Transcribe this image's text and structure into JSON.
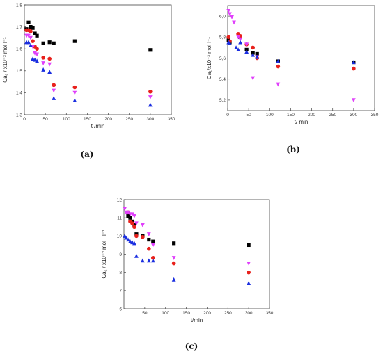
{
  "panel_labels": [
    "(a)",
    "(b)",
    "(c)"
  ],
  "chart_data": [
    {
      "type": "scatter",
      "panel": "(a)",
      "xlabel": "t /min",
      "ylabel": "Ca₁ / x10⁻³ mol l⁻¹",
      "xlim": [
        0,
        350
      ],
      "ylim": [
        1.3,
        1.8
      ],
      "xticks": [
        0,
        50,
        100,
        150,
        200,
        250,
        300,
        350
      ],
      "yticks": [
        1.3,
        1.4,
        1.5,
        1.6,
        1.7,
        1.8
      ],
      "ytick_labels": [
        "1.3",
        "1.4",
        "1.5",
        "1.6",
        "1.7",
        "1.8"
      ],
      "series": [
        {
          "color": "#000000",
          "marker": "square",
          "x": [
            5,
            10,
            15,
            20,
            25,
            30,
            45,
            60,
            70,
            120,
            300
          ],
          "y": [
            1.69,
            1.72,
            1.7,
            1.695,
            1.67,
            1.66,
            1.625,
            1.63,
            1.625,
            1.635,
            1.595
          ]
        },
        {
          "color": "#e8211c",
          "marker": "circle",
          "x": [
            5,
            10,
            15,
            20,
            25,
            30,
            45,
            60,
            70,
            120,
            300
          ],
          "y": [
            1.685,
            1.685,
            1.68,
            1.635,
            1.61,
            1.6,
            1.56,
            1.555,
            1.435,
            1.425,
            1.405
          ]
        },
        {
          "color": "#e040fb",
          "marker": "triangle-down",
          "x": [
            5,
            10,
            15,
            20,
            25,
            30,
            45,
            60,
            70,
            120,
            300
          ],
          "y": [
            1.66,
            1.66,
            1.65,
            1.61,
            1.58,
            1.575,
            1.535,
            1.53,
            1.41,
            1.4,
            1.38
          ]
        },
        {
          "color": "#1a2ee0",
          "marker": "triangle-up",
          "x": [
            5,
            10,
            15,
            20,
            25,
            30,
            45,
            60,
            70,
            120,
            300
          ],
          "y": [
            1.63,
            1.63,
            1.615,
            1.555,
            1.55,
            1.545,
            1.505,
            1.495,
            1.375,
            1.365,
            1.345
          ]
        }
      ]
    },
    {
      "type": "scatter",
      "panel": "(b)",
      "xlabel": "t/ min",
      "ylabel": "Ca₁/x10⁻³ mol l⁻¹",
      "xlim": [
        0,
        350
      ],
      "ylim": [
        5.1,
        6.1
      ],
      "xticks": [
        0,
        50,
        100,
        150,
        200,
        250,
        300,
        350
      ],
      "yticks": [
        5.2,
        5.4,
        5.6,
        5.8,
        6.0
      ],
      "ytick_labels": [
        "5,2",
        "5,4",
        "5,6",
        "5,8",
        "6,0"
      ],
      "series": [
        {
          "color": "#000000",
          "marker": "square",
          "x": [
            2,
            5,
            30,
            45,
            60,
            70,
            120,
            300
          ],
          "y": [
            5.77,
            5.75,
            5.8,
            5.68,
            5.65,
            5.64,
            5.57,
            5.56
          ]
        },
        {
          "color": "#e8211c",
          "marker": "circle",
          "x": [
            2,
            5,
            25,
            30,
            45,
            60,
            70,
            120,
            300
          ],
          "y": [
            5.8,
            5.76,
            5.83,
            5.81,
            5.73,
            5.7,
            5.6,
            5.52,
            5.5
          ]
        },
        {
          "color": "#e040fb",
          "marker": "triangle-down",
          "x": [
            2,
            5,
            10,
            15,
            25,
            30,
            45,
            60,
            70,
            120,
            300
          ],
          "y": [
            6.05,
            6.02,
            5.99,
            5.94,
            5.8,
            5.78,
            5.73,
            5.41,
            5.61,
            5.35,
            5.2
          ]
        },
        {
          "color": "#1a2ee0",
          "marker": "triangle-up",
          "x": [
            2,
            5,
            20,
            25,
            30,
            45,
            60,
            70,
            120,
            300
          ],
          "y": [
            5.75,
            5.74,
            5.7,
            5.68,
            5.75,
            5.66,
            5.63,
            5.61,
            5.57,
            5.56
          ]
        }
      ]
    },
    {
      "type": "scatter",
      "panel": "(c)",
      "xlabel": "t/min",
      "ylabel": "Ca₁ / x10⁻³ mol · l⁻¹",
      "xlim": [
        0,
        350
      ],
      "ylim": [
        6,
        12
      ],
      "xticks": [
        50,
        100,
        150,
        200,
        250,
        300,
        350
      ],
      "yticks": [
        6,
        7,
        8,
        9,
        10,
        11,
        12
      ],
      "ytick_labels": [
        "6",
        "7",
        "8",
        "9",
        "10",
        "11",
        "12"
      ],
      "series": [
        {
          "color": "#000000",
          "marker": "square",
          "x": [
            10,
            15,
            20,
            25,
            30,
            45,
            60,
            70,
            120,
            300
          ],
          "y": [
            11.1,
            11.0,
            10.8,
            10.6,
            10.1,
            10.0,
            9.8,
            9.7,
            9.6,
            9.5
          ]
        },
        {
          "color": "#e8211c",
          "marker": "circle",
          "x": [
            10,
            15,
            20,
            25,
            30,
            45,
            60,
            70,
            120,
            300
          ],
          "y": [
            11.3,
            10.8,
            10.7,
            10.5,
            10.0,
            9.95,
            9.3,
            8.8,
            8.5,
            8.0
          ]
        },
        {
          "color": "#e040fb",
          "marker": "triangle-down",
          "x": [
            2,
            5,
            10,
            15,
            20,
            25,
            30,
            45,
            60,
            70,
            120,
            300
          ],
          "y": [
            11.5,
            11.3,
            11.3,
            11.2,
            11.2,
            11.1,
            10.7,
            10.6,
            10.1,
            9.5,
            8.8,
            8.5
          ]
        },
        {
          "color": "#1a2ee0",
          "marker": "triangle-up",
          "x": [
            2,
            5,
            10,
            15,
            20,
            25,
            30,
            45,
            60,
            70,
            120,
            300
          ],
          "y": [
            10.0,
            9.9,
            9.8,
            9.7,
            9.65,
            9.6,
            8.9,
            8.65,
            8.65,
            8.65,
            7.6,
            7.4
          ]
        }
      ]
    }
  ]
}
